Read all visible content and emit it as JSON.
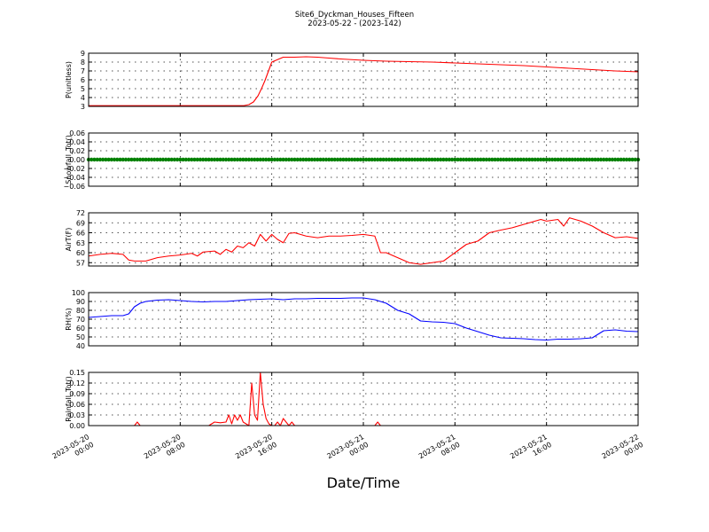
{
  "title_line1": "Site6_Dyckman_Houses_Fifteen",
  "title_line2": "2023-05-22 - (2023-142)",
  "xlabel": "Date/Time",
  "x_ticks": [
    {
      "l1": "2023-05-20",
      "l2": "00:00",
      "h": 0
    },
    {
      "l1": "2023-05-20",
      "l2": "08:00",
      "h": 8
    },
    {
      "l1": "2023-05-20",
      "l2": "16:00",
      "h": 16
    },
    {
      "l1": "2023-05-21",
      "l2": "00:00",
      "h": 24
    },
    {
      "l1": "2023-05-21",
      "l2": "08:00",
      "h": 32
    },
    {
      "l1": "2023-05-21",
      "l2": "16:00",
      "h": 40
    },
    {
      "l1": "2023-05-22",
      "l2": "00:00",
      "h": 48
    }
  ],
  "chart_data": [
    {
      "type": "line",
      "ylabel": "P(unitless)",
      "ylim": [
        3,
        9
      ],
      "yticks": [
        3,
        4,
        5,
        6,
        7,
        8,
        9
      ],
      "tick_labels": [
        "3",
        "4",
        "5",
        "6",
        "7",
        "8",
        "9"
      ],
      "grid": true,
      "series": [
        {
          "color": "#ff0000",
          "x": [
            0,
            4,
            8,
            11,
            13,
            13.6,
            14,
            14.4,
            14.8,
            15.1,
            15.4,
            16,
            17,
            18,
            19,
            20,
            21,
            22,
            24,
            26,
            28,
            30,
            32,
            34,
            36,
            38,
            40,
            42,
            44,
            46,
            48
          ],
          "y": [
            3.08,
            3.08,
            3.08,
            3.08,
            3.08,
            3.1,
            3.2,
            3.5,
            4.2,
            5,
            5.9,
            8.0,
            8.55,
            8.55,
            8.6,
            8.55,
            8.45,
            8.35,
            8.2,
            8.1,
            8.05,
            8.0,
            7.9,
            7.8,
            7.7,
            7.6,
            7.45,
            7.3,
            7.15,
            7.0,
            6.9
          ]
        }
      ]
    },
    {
      "type": "scatter",
      "ylabel": "Snowfall_Tot()",
      "ylim": [
        -0.06,
        0.06
      ],
      "yticks": [
        -0.06,
        -0.04,
        -0.02,
        0,
        0.02,
        0.04,
        0.06
      ],
      "tick_labels": [
        "−0.06",
        "−0.04",
        "−0.02",
        "0.00",
        "0.02",
        "0.04",
        "0.06"
      ],
      "grid": true,
      "series": [
        {
          "color": "#008000",
          "x_start": 0,
          "x_end": 48,
          "x_step": 0.25,
          "y_const": 0
        }
      ]
    },
    {
      "type": "line",
      "ylabel": "AirT(F)",
      "ylim": [
        56,
        72
      ],
      "yticks": [
        57,
        60,
        63,
        66,
        69,
        72
      ],
      "tick_labels": [
        "57",
        "60",
        "63",
        "66",
        "69",
        "72"
      ],
      "grid": true,
      "series": [
        {
          "color": "#ff0000",
          "x": [
            0,
            1,
            2,
            3,
            3.5,
            4,
            5,
            6,
            7,
            8,
            9,
            9.5,
            10,
            11,
            11.5,
            12,
            12.5,
            13,
            13.5,
            14,
            14.5,
            15,
            15.5,
            16,
            16.5,
            17,
            17.5,
            18,
            18.5,
            19,
            20,
            21,
            22,
            23,
            24,
            25,
            25.5,
            26,
            27,
            28,
            29,
            30,
            31,
            32,
            33,
            34,
            35,
            36,
            37,
            38,
            39,
            39.5,
            40,
            41,
            41.5,
            42,
            43,
            44,
            45,
            46,
            47,
            48
          ],
          "y": [
            59.0,
            59.5,
            59.8,
            59.5,
            57.8,
            57.5,
            57.5,
            58.5,
            59.0,
            59.3,
            59.8,
            59.0,
            60.2,
            60.5,
            59.5,
            61.0,
            60.2,
            62.0,
            61.5,
            63.0,
            62.0,
            65.5,
            63.5,
            65.5,
            64.0,
            63.0,
            65.8,
            66.0,
            65.5,
            65.0,
            64.5,
            65.0,
            65.0,
            65.2,
            65.5,
            65.0,
            60.0,
            60.0,
            58.5,
            57.0,
            56.5,
            57.0,
            57.5,
            60.0,
            62.5,
            63.5,
            66.0,
            66.8,
            67.5,
            68.5,
            69.5,
            70.0,
            69.5,
            70.0,
            68.0,
            70.5,
            69.5,
            68.0,
            66.0,
            64.5,
            64.8,
            64.3
          ]
        }
      ]
    },
    {
      "type": "line",
      "ylabel": "RH(%)",
      "ylim": [
        40,
        100
      ],
      "yticks": [
        40,
        50,
        60,
        70,
        80,
        90,
        100
      ],
      "tick_labels": [
        "40",
        "50",
        "60",
        "70",
        "80",
        "90",
        "100"
      ],
      "grid": true,
      "series": [
        {
          "color": "#0000ff",
          "x": [
            0,
            1,
            2,
            3,
            3.5,
            4,
            4.5,
            5,
            6,
            7,
            8,
            9,
            10,
            11,
            12,
            13,
            14,
            15,
            16,
            17,
            18,
            19,
            20,
            21,
            22,
            23,
            24,
            25,
            26,
            27,
            28,
            29,
            30,
            31,
            32,
            33,
            34,
            35,
            36,
            37,
            38,
            39,
            40,
            41,
            42,
            43,
            44,
            45,
            46,
            47,
            48
          ],
          "y": [
            72,
            73,
            74,
            74,
            76,
            84,
            88,
            90,
            91.5,
            92,
            91,
            90,
            89.5,
            90,
            90,
            91,
            92,
            92.5,
            93,
            92,
            93,
            93,
            93.5,
            93.5,
            93.5,
            94,
            94,
            92,
            88,
            80,
            76,
            68,
            67,
            66.5,
            65,
            60,
            56,
            52,
            49,
            48.5,
            48,
            47,
            46.5,
            47.5,
            47.5,
            48,
            49,
            57,
            58,
            56.5,
            56
          ]
        }
      ]
    },
    {
      "type": "line",
      "ylabel": "Rainfall_Tot()",
      "ylim": [
        0,
        0.15
      ],
      "yticks": [
        0,
        0.03,
        0.06,
        0.09,
        0.12,
        0.15
      ],
      "tick_labels": [
        "0.00",
        "0.03",
        "0.06",
        "0.09",
        "0.12",
        "0.15"
      ],
      "grid": true,
      "series": [
        {
          "color": "#ff0000",
          "x": [
            0,
            4,
            4.25,
            4.5,
            10.5,
            10.75,
            11,
            11.5,
            12,
            12.25,
            12.5,
            12.75,
            13,
            13.25,
            13.5,
            14,
            14.25,
            14.5,
            14.75,
            15,
            15.25,
            15.5,
            15.75,
            16,
            16.25,
            16.5,
            16.75,
            17,
            17.25,
            17.5,
            17.75,
            18,
            18.25,
            25,
            25.25,
            25.5,
            48
          ],
          "y": [
            0,
            0,
            0.01,
            0,
            0,
            0.005,
            0.01,
            0.008,
            0.01,
            0.03,
            0.005,
            0.03,
            0.015,
            0.03,
            0.01,
            0.0,
            0.12,
            0.03,
            0.015,
            0.15,
            0.06,
            0.02,
            0.005,
            0.0,
            0.0,
            0.01,
            0.0,
            0.02,
            0.01,
            0.0,
            0.01,
            0.0,
            0.0,
            0.0,
            0.01,
            0.0,
            0
          ]
        }
      ]
    }
  ]
}
